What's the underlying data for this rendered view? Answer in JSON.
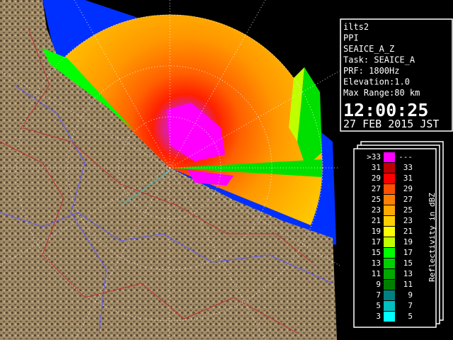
{
  "station": {
    "lines": [
      "ilts2",
      "PPI",
      "SEAICE_A_Z",
      "Task: SEAICE_A",
      "PRF: 1800Hz",
      "Elevation:1.0",
      "Max Range:80 km"
    ],
    "time": "12:00:25",
    "date": "27 FEB 2015 JST"
  },
  "legend": {
    "title": "Reflectivity in dBZ",
    "rows": [
      {
        "low": ">33",
        "high": "---",
        "color": "#ff00ff"
      },
      {
        "low": "31",
        "high": "33",
        "color": "#c00000"
      },
      {
        "low": "29",
        "high": "31",
        "color": "#ff0000"
      },
      {
        "low": "27",
        "high": "29",
        "color": "#ff5000"
      },
      {
        "low": "25",
        "high": "27",
        "color": "#ff8000"
      },
      {
        "low": "23",
        "high": "25",
        "color": "#ffa800"
      },
      {
        "low": "21",
        "high": "23",
        "color": "#ffd000"
      },
      {
        "low": "19",
        "high": "21",
        "color": "#ffff00"
      },
      {
        "low": "17",
        "high": "19",
        "color": "#c0ff00"
      },
      {
        "low": "15",
        "high": "17",
        "color": "#00ff00"
      },
      {
        "low": "13",
        "high": "15",
        "color": "#00d000"
      },
      {
        "low": "11",
        "high": "13",
        "color": "#00a800"
      },
      {
        "low": "9",
        "high": "11",
        "color": "#008000"
      },
      {
        "low": "7",
        "high": "9",
        "color": "#008080"
      },
      {
        "low": "5",
        "high": "7",
        "color": "#00c0c0"
      },
      {
        "low": "3",
        "high": "5",
        "color": "#00ffff"
      }
    ]
  }
}
